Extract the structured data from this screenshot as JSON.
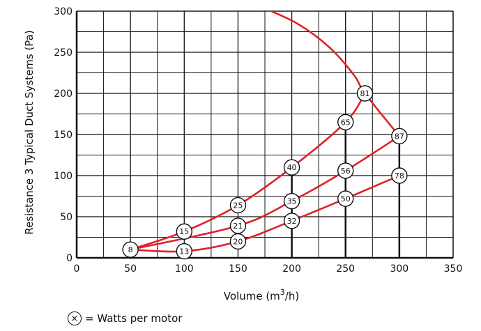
{
  "chart_data": {
    "type": "line",
    "title": "",
    "xlabel": "Volume (m",
    "xlabel_sup": "3",
    "xlabel_tail": "/h)",
    "ylabel": "Resistance 3 Typical Duct Systems  (Pa)",
    "xlim": [
      0,
      350
    ],
    "ylim": [
      0,
      300
    ],
    "xticks": [
      0,
      50,
      100,
      150,
      200,
      250,
      300,
      350
    ],
    "yticks": [
      0,
      50,
      100,
      150,
      200,
      250,
      300
    ],
    "grid": true,
    "minor_x_step": 25,
    "minor_y_step": 25,
    "vertical_markers_at": [
      200,
      250,
      300
    ],
    "line_color": "#e0202a",
    "series": [
      {
        "points": [
          [
            50,
            10
          ],
          [
            100,
            32
          ],
          [
            150,
            64
          ],
          [
            200,
            110
          ],
          [
            250,
            165
          ],
          [
            268,
            200
          ]
        ],
        "labels": [
          "8",
          "15",
          "25",
          "40",
          "65",
          "81"
        ]
      },
      {
        "points": [
          [
            50,
            10
          ],
          [
            150,
            39
          ],
          [
            200,
            69
          ],
          [
            250,
            106
          ],
          [
            300,
            148
          ]
        ],
        "labels": [
          "",
          "21",
          "35",
          "56",
          "87"
        ]
      },
      {
        "points": [
          [
            50,
            10
          ],
          [
            100,
            8
          ],
          [
            150,
            20
          ],
          [
            200,
            45
          ],
          [
            250,
            72
          ],
          [
            300,
            100
          ]
        ],
        "labels": [
          "",
          "13",
          "20",
          "32",
          "50",
          "78"
        ]
      }
    ],
    "fan_curve": [
      [
        170,
        306
      ],
      [
        205,
        285
      ],
      [
        235,
        256
      ],
      [
        258,
        222
      ],
      [
        268,
        200
      ],
      [
        300,
        148
      ]
    ]
  },
  "legend": {
    "symbol": "×",
    "text": "= Watts per motor"
  }
}
